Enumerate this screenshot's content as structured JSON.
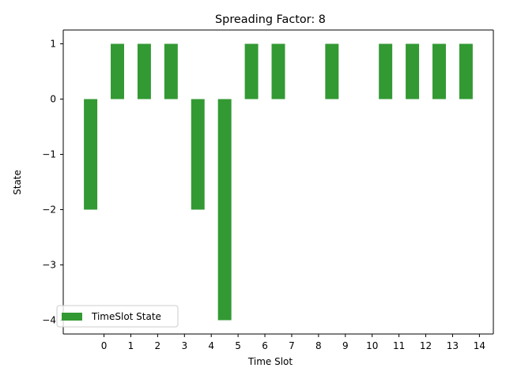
{
  "chart_data": {
    "type": "bar",
    "title": "Spreading Factor: 8",
    "xlabel": "Time Slot",
    "ylabel": "State",
    "x": [
      -0.5,
      0.5,
      1.5,
      2.5,
      3.5,
      4.5,
      5.5,
      6.5,
      7.5,
      8.5,
      9.5,
      10.5,
      11.5,
      12.5,
      13.5
    ],
    "values": [
      -2,
      1,
      1,
      1,
      -2,
      -4,
      1,
      1,
      0,
      1,
      0,
      1,
      1,
      1,
      1
    ],
    "xticks": [
      0,
      1,
      2,
      3,
      4,
      5,
      6,
      7,
      8,
      9,
      10,
      11,
      12,
      13,
      14
    ],
    "yticks": [
      -4,
      -3,
      -2,
      -1,
      0,
      1
    ],
    "xtick_labels": [
      "0",
      "1",
      "2",
      "3",
      "4",
      "5",
      "6",
      "7",
      "8",
      "9",
      "10",
      "11",
      "12",
      "13",
      "14"
    ],
    "ytick_labels": [
      "−4",
      "−3",
      "−2",
      "−1",
      "0",
      "1"
    ],
    "xlim": [
      -1.52,
      14.52
    ],
    "ylim": [
      -4.25,
      1.25
    ],
    "bar_width": 0.5,
    "color": "#339933",
    "legend": {
      "labels": [
        "TimeSlot State"
      ],
      "position": "lower left"
    },
    "grid": false
  }
}
